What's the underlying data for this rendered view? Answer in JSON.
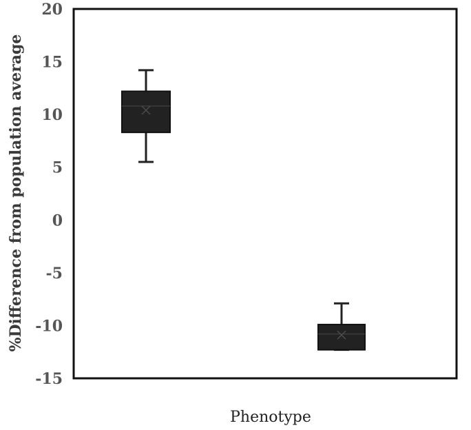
{
  "chart_data": {
    "type": "box",
    "title": "",
    "xlabel": "Phenotype",
    "ylabel": "%Difference from population average",
    "ylim": [
      -15,
      20
    ],
    "yticks": [
      20,
      15,
      10,
      5,
      0,
      -5,
      -10,
      -15
    ],
    "grid": false,
    "legend": "none",
    "categories": [
      "",
      ""
    ],
    "boxes": [
      {
        "whisker_low": 5.5,
        "q1": 8.3,
        "median": 10.8,
        "mean": 10.4,
        "q3": 12.2,
        "whisker_high": 14.2
      },
      {
        "whisker_low": -12.3,
        "q1": -12.3,
        "median": -10.8,
        "mean": -10.9,
        "q3": -9.9,
        "whisker_high": -7.9
      }
    ],
    "colors": {
      "box": "#222222",
      "axis": "#111111",
      "tick_text": "#555555"
    }
  }
}
